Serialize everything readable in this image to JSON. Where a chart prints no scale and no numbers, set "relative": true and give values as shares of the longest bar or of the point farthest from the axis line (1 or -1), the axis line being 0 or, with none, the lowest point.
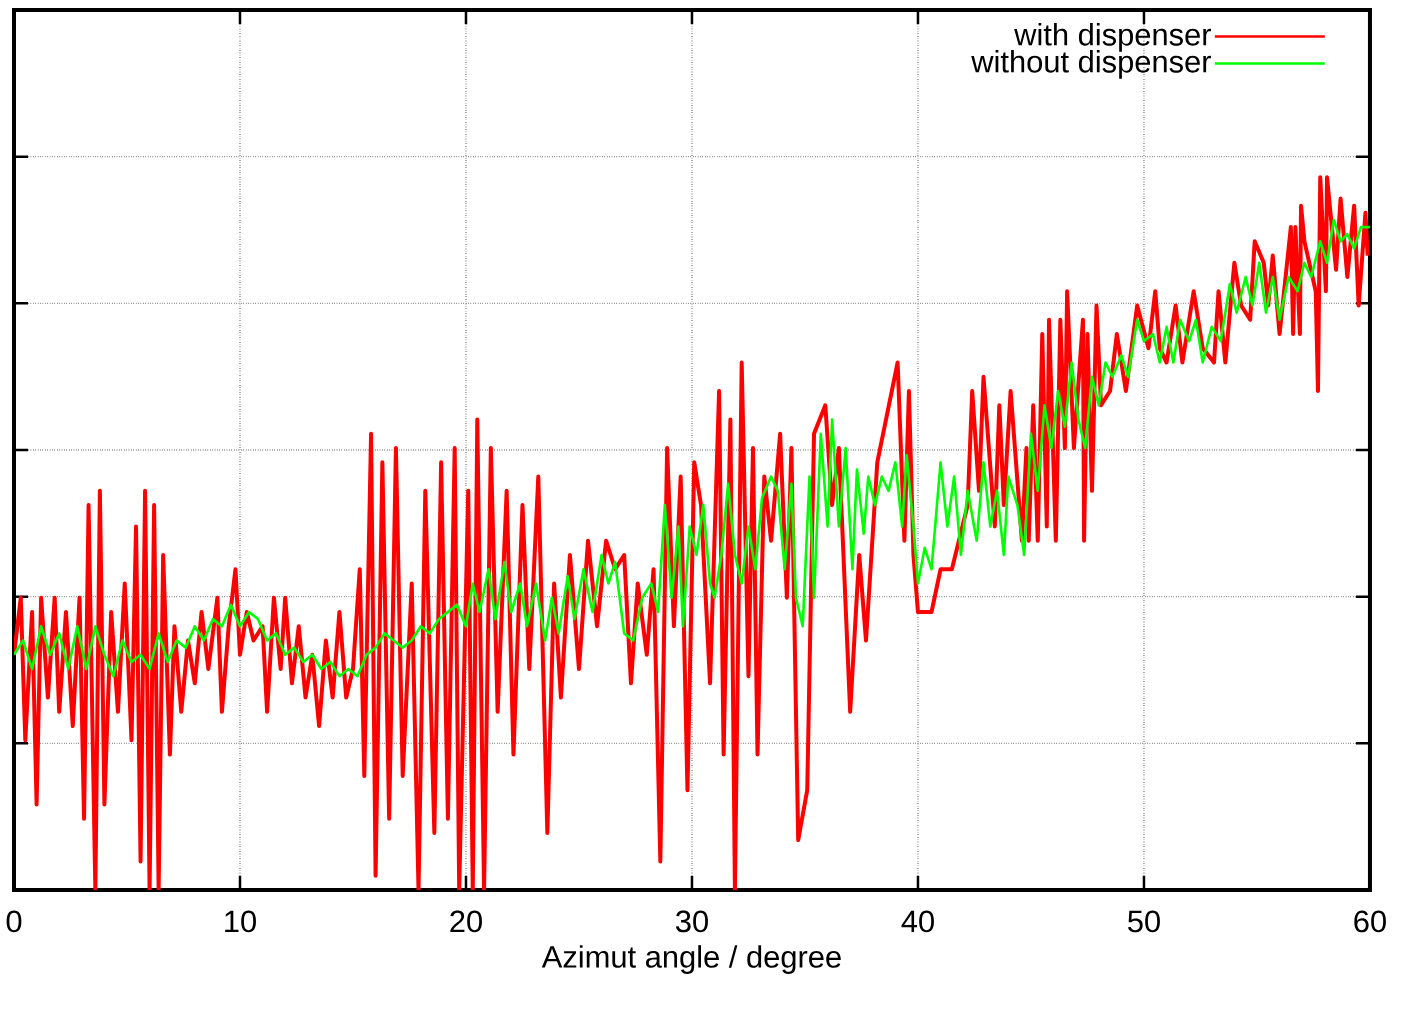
{
  "chart_data": {
    "type": "line",
    "xlabel": "Azimut angle / degree",
    "relative": true,
    "xlim": [
      0,
      60
    ],
    "xticks": [
      0,
      10,
      20,
      30,
      40,
      50,
      60
    ],
    "grid": true,
    "legend": "top right",
    "series": [
      {
        "name": "with dispenser",
        "color": "#ff0000",
        "x": [
          0,
          0.3,
          0.5,
          0.8,
          1.0,
          1.2,
          1.5,
          1.8,
          2.0,
          2.3,
          2.6,
          2.9,
          3.1,
          3.3,
          3.6,
          3.8,
          4.0,
          4.3,
          4.6,
          4.9,
          5.2,
          5.4,
          5.6,
          5.8,
          6.0,
          6.2,
          6.4,
          6.6,
          6.9,
          7.1,
          7.4,
          7.7,
          8.0,
          8.3,
          8.6,
          9.0,
          9.2,
          9.5,
          9.8,
          10.0,
          10.3,
          10.6,
          11.0,
          11.2,
          11.5,
          11.8,
          12.0,
          12.3,
          12.6,
          12.9,
          13.2,
          13.5,
          13.8,
          14.1,
          14.4,
          14.7,
          15.0,
          15.3,
          15.5,
          15.8,
          16.0,
          16.3,
          16.6,
          16.9,
          17.2,
          17.6,
          17.9,
          18.2,
          18.6,
          18.9,
          19.2,
          19.5,
          19.7,
          20.1,
          20.3,
          20.5,
          20.8,
          21.1,
          21.4,
          21.8,
          22.1,
          22.5,
          22.8,
          23.2,
          23.6,
          23.9,
          24.2,
          24.6,
          25.0,
          25.4,
          25.8,
          26.2,
          26.6,
          27.0,
          27.3,
          27.6,
          28.0,
          28.3,
          28.6,
          28.9,
          29.2,
          29.5,
          29.8,
          30.1,
          30.4,
          30.8,
          31.2,
          31.4,
          31.7,
          31.9,
          32.2,
          32.5,
          32.7,
          32.9,
          33.2,
          33.5,
          33.9,
          34.2,
          34.4,
          34.7,
          35.1,
          35.4,
          35.9,
          36.2,
          36.5,
          37.0,
          37.4,
          37.7,
          38.2,
          39.1,
          39.4,
          39.6,
          39.8,
          40.0,
          40.2,
          40.6,
          41.0,
          41.5,
          42.2,
          42.4,
          42.7,
          42.9,
          43.4,
          43.6,
          43.8,
          44.1,
          44.6,
          44.8,
          44.9,
          45.1,
          45.3,
          45.5,
          45.7,
          45.8,
          46.1,
          46.3,
          46.5,
          46.6,
          46.9,
          47.3,
          47.35,
          47.5,
          47.7,
          47.9,
          48.1,
          48.5,
          48.8,
          49.2,
          49.7,
          50.2,
          50.5,
          50.7,
          51.0,
          51.4,
          51.7,
          52.2,
          52.6,
          53.1,
          53.3,
          53.6,
          54.0,
          54.3,
          54.7,
          54.9,
          55.3,
          55.5,
          55.7,
          56.0,
          56.5,
          56.6,
          56.7,
          56.9,
          56.95,
          57.1,
          57.6,
          57.7,
          57.8,
          58.05,
          58.1,
          58.5,
          58.7,
          59.0,
          59.3,
          59.5,
          59.8,
          59.9
        ],
        "values": [
          0.33,
          0.41,
          0.21,
          0.39,
          0.12,
          0.41,
          0.27,
          0.41,
          0.25,
          0.39,
          0.23,
          0.41,
          0.1,
          0.54,
          0,
          0.56,
          0.12,
          0.39,
          0.25,
          0.43,
          0.21,
          0.51,
          0.04,
          0.56,
          0,
          0.54,
          0,
          0.47,
          0.19,
          0.37,
          0.25,
          0.35,
          0.29,
          0.39,
          0.31,
          0.41,
          0.25,
          0.37,
          0.45,
          0.33,
          0.39,
          0.35,
          0.37,
          0.25,
          0.41,
          0.31,
          0.41,
          0.29,
          0.37,
          0.27,
          0.33,
          0.23,
          0.35,
          0.27,
          0.39,
          0.27,
          0.31,
          0.45,
          0.16,
          0.64,
          0.02,
          0.6,
          0.1,
          0.62,
          0.16,
          0.43,
          0,
          0.56,
          0.08,
          0.6,
          0.1,
          0.62,
          0,
          0.56,
          0,
          0.66,
          0,
          0.62,
          0.25,
          0.56,
          0.19,
          0.54,
          0.31,
          0.58,
          0.08,
          0.43,
          0.27,
          0.47,
          0.31,
          0.49,
          0.37,
          0.49,
          0.45,
          0.47,
          0.29,
          0.43,
          0.33,
          0.45,
          0.04,
          0.62,
          0.37,
          0.58,
          0.14,
          0.6,
          0.54,
          0.29,
          0.7,
          0.19,
          0.66,
          0,
          0.74,
          0.3,
          0.62,
          0.19,
          0.58,
          0.49,
          0.64,
          0.41,
          0.62,
          0.07,
          0.14,
          0.64,
          0.68,
          0.54,
          0.62,
          0.25,
          0.47,
          0.35,
          0.6,
          0.74,
          0.49,
          0.7,
          0.47,
          0.39,
          0.39,
          0.39,
          0.45,
          0.45,
          0.54,
          0.7,
          0.56,
          0.72,
          0.51,
          0.68,
          0.54,
          0.7,
          0.49,
          0.62,
          0.49,
          0.68,
          0.49,
          0.78,
          0.51,
          0.8,
          0.49,
          0.8,
          0.62,
          0.84,
          0.62,
          0.8,
          0.49,
          0.78,
          0.56,
          0.82,
          0.68,
          0.7,
          0.78,
          0.7,
          0.82,
          0.76,
          0.84,
          0.76,
          0.74,
          0.82,
          0.74,
          0.84,
          0.76,
          0.74,
          0.84,
          0.74,
          0.88,
          0.82,
          0.8,
          0.91,
          0.88,
          0.82,
          0.89,
          0.78,
          0.93,
          0.78,
          0.93,
          0.78,
          0.96,
          0.91,
          0.84,
          0.7,
          1,
          0.84,
          1.0,
          0.87,
          0.97,
          0.86,
          0.96,
          0.82,
          0.95,
          0.89
        ]
      },
      {
        "name": "without dispenser",
        "color": "#00ff00",
        "x": [
          0,
          0.4,
          0.8,
          1.2,
          1.6,
          2.0,
          2.4,
          2.8,
          3.2,
          3.6,
          4.0,
          4.4,
          4.8,
          5.2,
          5.6,
          6.0,
          6.4,
          6.8,
          7.2,
          7.6,
          8.0,
          8.4,
          8.8,
          9.2,
          9.6,
          10.0,
          10.4,
          10.8,
          11.2,
          11.6,
          12.0,
          12.4,
          12.8,
          13.2,
          13.6,
          14.0,
          14.4,
          14.8,
          15.2,
          15.6,
          16.0,
          16.4,
          16.8,
          17.2,
          17.6,
          18.0,
          18.4,
          18.8,
          19.2,
          19.6,
          20.0,
          20.3,
          20.6,
          21.0,
          21.3,
          21.7,
          22.0,
          22.4,
          22.7,
          23.1,
          23.5,
          23.8,
          24.1,
          24.5,
          24.8,
          25.2,
          25.6,
          26.0,
          26.3,
          26.6,
          27.0,
          27.4,
          27.8,
          28.2,
          28.5,
          28.8,
          29.1,
          29.4,
          29.6,
          29.9,
          30.2,
          30.5,
          30.8,
          31.0,
          31.3,
          31.6,
          31.9,
          32.2,
          32.5,
          32.8,
          33.1,
          33.5,
          33.8,
          34.1,
          34.4,
          34.6,
          34.9,
          35.2,
          35.4,
          35.7,
          36.0,
          36.2,
          36.5,
          36.8,
          37.1,
          37.3,
          37.6,
          37.8,
          38.1,
          38.4,
          38.7,
          39.0,
          39.3,
          39.5,
          39.8,
          40.0,
          40.3,
          40.6,
          41.0,
          41.3,
          41.6,
          41.9,
          42.2,
          42.6,
          42.9,
          43.2,
          43.5,
          43.8,
          44.0,
          44.4,
          44.7,
          45.0,
          45.3,
          45.6,
          45.9,
          46.2,
          46.5,
          46.8,
          47.1,
          47.4,
          47.7,
          48.0,
          48.3,
          48.6,
          49.0,
          49.3,
          49.7,
          50.0,
          50.4,
          50.7,
          51.0,
          51.3,
          51.6,
          52.0,
          52.3,
          52.6,
          53.0,
          53.4,
          53.8,
          54.1,
          54.5,
          54.8,
          55.1,
          55.4,
          55.7,
          56.0,
          56.4,
          56.8,
          57.1,
          57.4,
          57.8,
          58.1,
          58.4,
          58.7,
          59.0,
          59.3,
          59.6,
          60.0
        ],
        "values": [
          0.33,
          0.35,
          0.31,
          0.37,
          0.33,
          0.36,
          0.31,
          0.37,
          0.31,
          0.37,
          0.33,
          0.3,
          0.35,
          0.32,
          0.33,
          0.31,
          0.36,
          0.32,
          0.35,
          0.34,
          0.37,
          0.35,
          0.38,
          0.37,
          0.4,
          0.37,
          0.39,
          0.38,
          0.35,
          0.36,
          0.33,
          0.34,
          0.32,
          0.33,
          0.31,
          0.32,
          0.3,
          0.31,
          0.3,
          0.33,
          0.34,
          0.36,
          0.35,
          0.34,
          0.35,
          0.37,
          0.36,
          0.38,
          0.39,
          0.4,
          0.37,
          0.43,
          0.39,
          0.45,
          0.38,
          0.46,
          0.39,
          0.43,
          0.37,
          0.43,
          0.35,
          0.41,
          0.36,
          0.44,
          0.38,
          0.45,
          0.39,
          0.47,
          0.43,
          0.46,
          0.36,
          0.35,
          0.41,
          0.43,
          0.39,
          0.54,
          0.41,
          0.51,
          0.37,
          0.51,
          0.47,
          0.54,
          0.43,
          0.41,
          0.47,
          0.57,
          0.47,
          0.43,
          0.51,
          0.45,
          0.55,
          0.58,
          0.56,
          0.45,
          0.57,
          0.41,
          0.37,
          0.58,
          0.41,
          0.64,
          0.51,
          0.66,
          0.51,
          0.62,
          0.45,
          0.59,
          0.5,
          0.58,
          0.54,
          0.58,
          0.56,
          0.6,
          0.51,
          0.61,
          0.51,
          0.43,
          0.48,
          0.45,
          0.6,
          0.51,
          0.58,
          0.47,
          0.56,
          0.49,
          0.6,
          0.51,
          0.56,
          0.47,
          0.58,
          0.54,
          0.47,
          0.64,
          0.56,
          0.68,
          0.62,
          0.7,
          0.65,
          0.74,
          0.66,
          0.62,
          0.72,
          0.68,
          0.74,
          0.72,
          0.75,
          0.72,
          0.8,
          0.77,
          0.78,
          0.74,
          0.79,
          0.74,
          0.8,
          0.77,
          0.8,
          0.74,
          0.79,
          0.77,
          0.85,
          0.81,
          0.86,
          0.82,
          0.88,
          0.81,
          0.86,
          0.8,
          0.86,
          0.84,
          0.88,
          0.86,
          0.91,
          0.88,
          0.94,
          0.91,
          0.92,
          0.9,
          0.93,
          0.93
        ]
      }
    ]
  }
}
